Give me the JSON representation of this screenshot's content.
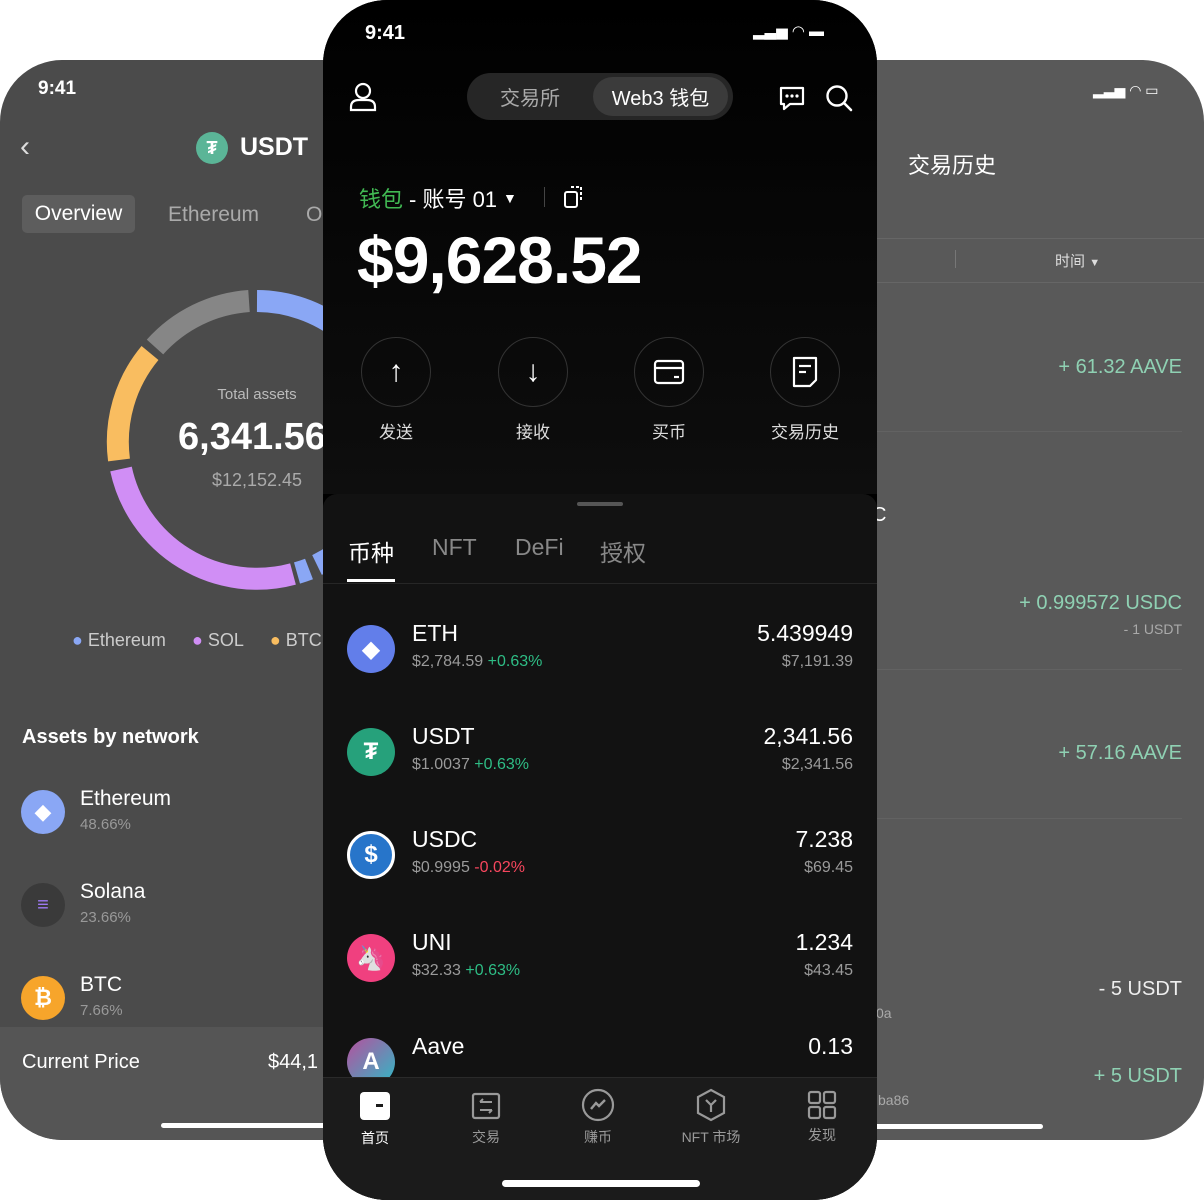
{
  "left_phone": {
    "status_time": "9:41",
    "title": "USDT",
    "tabs": [
      "Overview",
      "Ethereum",
      "O"
    ],
    "total_label": "Total assets",
    "total_value": "6,341.56",
    "total_usd": "$12,152.45",
    "legend": [
      {
        "label": "Ethereum",
        "color": "#8aa7f5"
      },
      {
        "label": "SOL",
        "color": "#d08ef5"
      },
      {
        "label": "BTC",
        "color": "#f9bd60"
      }
    ],
    "section_title": "Assets by network",
    "networks": [
      {
        "name": "Ethereum",
        "percent": "48.66%"
      },
      {
        "name": "Solana",
        "percent": "23.66%"
      },
      {
        "name": "BTC",
        "percent": "7.66%"
      }
    ],
    "current_price_label": "Current Price",
    "current_price_value": "$44,1"
  },
  "center_phone": {
    "status_time": "9:41",
    "segments": [
      "交易所",
      "Web3 钱包"
    ],
    "active_segment": "Web3 钱包",
    "wallet_label": "钱包",
    "account_label": "- 账号 01",
    "balance": "$9,628.52",
    "actions": [
      "发送",
      "接收",
      "买币",
      "交易历史"
    ],
    "asset_tabs": [
      "币种",
      "NFT",
      "DeFi",
      "授权"
    ],
    "active_asset_tab": "币种",
    "assets": [
      {
        "symbol": "ETH",
        "price": "$2,784.59",
        "change": "+0.63%",
        "amount": "5.439949",
        "value": "$7,191.39",
        "color": "#627eea"
      },
      {
        "symbol": "USDT",
        "price": "$1.0037",
        "change": "+0.63%",
        "amount": "2,341.56",
        "value": "$2,341.56",
        "color": "#26a17b"
      },
      {
        "symbol": "USDC",
        "price": "$0.9995",
        "change": "-0.02%",
        "amount": "7.238",
        "value": "$69.45",
        "color": "#2775ca"
      },
      {
        "symbol": "UNI",
        "price": "$32.33",
        "change": "+0.63%",
        "amount": "1.234",
        "value": "$43.45",
        "color": "#ff007a"
      },
      {
        "symbol": "Aave",
        "amount": "0.13",
        "color": "#b6509e"
      }
    ],
    "bottom_nav": [
      "首页",
      "交易",
      "赚币",
      "NFT 市场",
      "发现"
    ],
    "active_nav": "首页"
  },
  "right_phone": {
    "title": "交易历史",
    "filter_time": "时间",
    "fragments": [
      "C",
      "0a",
      "ba86"
    ],
    "transactions": [
      {
        "amount": "+ 61.32 AAVE"
      },
      {
        "amount": "+ 0.999572 USDC",
        "sub": "- 1 USDT"
      },
      {
        "amount": "+ 57.16 AAVE"
      },
      {
        "amount": "- 5 USDT"
      },
      {
        "amount": "+ 5 USDT"
      }
    ]
  }
}
